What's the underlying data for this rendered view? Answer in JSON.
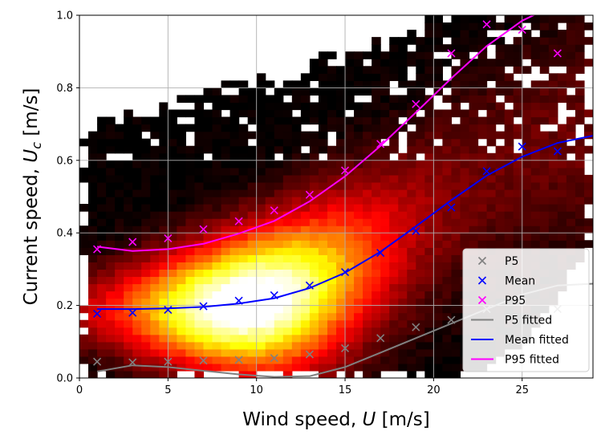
{
  "chart_data": {
    "type": "heatmap",
    "title": "",
    "xlabel": "Wind speed, U [m/s]",
    "ylabel": "Current speed, U_c [m/s]",
    "xlim": [
      0,
      29
    ],
    "ylim": [
      0,
      1.0
    ],
    "x_ticks": [
      "0",
      "5",
      "10",
      "15",
      "20",
      "25"
    ],
    "y_ticks": [
      "0.0",
      "0.2",
      "0.4",
      "0.6",
      "0.8",
      "1.0"
    ],
    "grid": true,
    "legend_position": "lower-right",
    "colormap": "hot",
    "density_peak": {
      "x": 9.5,
      "y": 0.17
    },
    "series": [
      {
        "name": "P5",
        "kind": "scatter-x",
        "color": "#808080",
        "x": [
          1,
          3,
          5,
          7,
          9,
          11,
          13,
          15,
          17,
          19,
          21,
          23,
          25,
          27
        ],
        "y": [
          0.045,
          0.043,
          0.045,
          0.048,
          0.05,
          0.055,
          0.065,
          0.082,
          0.11,
          0.14,
          0.16,
          0.19,
          0.21,
          0.19
        ]
      },
      {
        "name": "Mean",
        "kind": "scatter-x",
        "color": "#0000ff",
        "x": [
          1,
          3,
          5,
          7,
          9,
          11,
          13,
          15,
          17,
          19,
          21,
          23,
          25,
          27
        ],
        "y": [
          0.177,
          0.18,
          0.188,
          0.198,
          0.213,
          0.228,
          0.255,
          0.292,
          0.345,
          0.405,
          0.47,
          0.57,
          0.638,
          0.625
        ]
      },
      {
        "name": "P95",
        "kind": "scatter-x",
        "color": "#ff00ff",
        "x": [
          1,
          3,
          5,
          7,
          9,
          11,
          13,
          15,
          17,
          19,
          21,
          23,
          25,
          27
        ],
        "y": [
          0.355,
          0.375,
          0.385,
          0.41,
          0.432,
          0.462,
          0.505,
          0.572,
          0.645,
          0.755,
          0.895,
          0.975,
          0.96,
          0.895
        ]
      },
      {
        "name": "P5 fitted",
        "kind": "line",
        "color": "#808080",
        "x": [
          1,
          3,
          5,
          7,
          9,
          11,
          13,
          15,
          17,
          19,
          21,
          23,
          25,
          27,
          29
        ],
        "y": [
          0.018,
          0.035,
          0.03,
          0.02,
          0.01,
          0.003,
          0.005,
          0.03,
          0.07,
          0.11,
          0.15,
          0.19,
          0.23,
          0.255,
          0.26
        ]
      },
      {
        "name": "Mean fitted",
        "kind": "line",
        "color": "#0000ff",
        "x": [
          1,
          3,
          5,
          7,
          9,
          11,
          13,
          15,
          17,
          19,
          21,
          23,
          25,
          27,
          29
        ],
        "y": [
          0.19,
          0.19,
          0.192,
          0.196,
          0.205,
          0.22,
          0.248,
          0.29,
          0.348,
          0.418,
          0.49,
          0.558,
          0.61,
          0.648,
          0.668
        ]
      },
      {
        "name": "P95 fitted",
        "kind": "line",
        "color": "#ff00ff",
        "x": [
          1,
          3,
          5,
          7,
          9,
          11,
          13,
          15,
          17,
          19,
          21,
          23,
          25,
          26.5
        ],
        "y": [
          0.362,
          0.35,
          0.355,
          0.37,
          0.398,
          0.433,
          0.487,
          0.556,
          0.64,
          0.732,
          0.826,
          0.915,
          0.985,
          1.02
        ]
      }
    ]
  }
}
